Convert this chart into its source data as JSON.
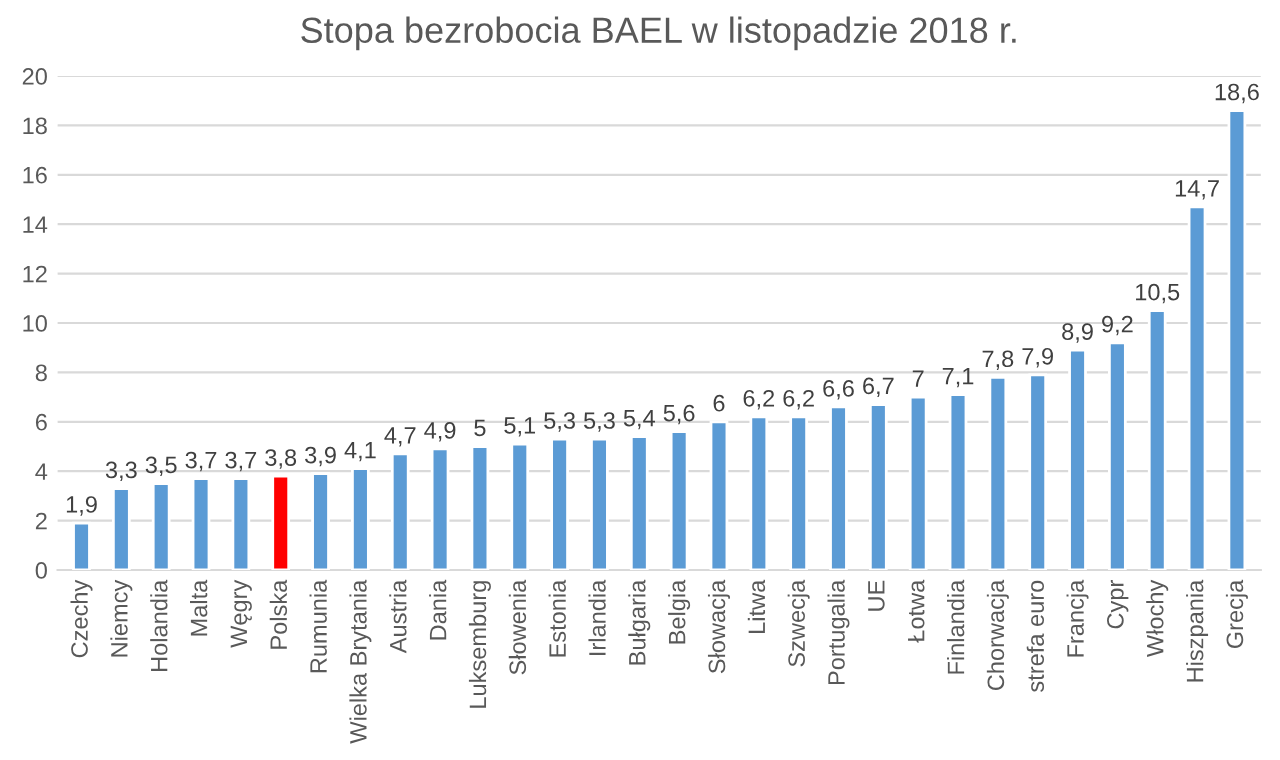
{
  "chart_data": {
    "type": "bar",
    "title": "Stopa bezrobocia BAEL w listopadzie 2018 r.",
    "categories": [
      "Czechy",
      "Niemcy",
      "Holandia",
      "Malta",
      "Węgry",
      "Polska",
      "Rumunia",
      "Wielka Brytania",
      "Austria",
      "Dania",
      "Luksemburg",
      "Słowenia",
      "Estonia",
      "Irlandia",
      "Bułgaria",
      "Belgia",
      "Słowacja",
      "Litwa",
      "Szwecja",
      "Portugalia",
      "UE",
      "Łotwa",
      "Finlandia",
      "Chorwacja",
      "strefa euro",
      "Francja",
      "Cypr",
      "Włochy",
      "Hiszpania",
      "Grecja"
    ],
    "values": [
      1.9,
      3.3,
      3.5,
      3.7,
      3.7,
      3.8,
      3.9,
      4.1,
      4.7,
      4.9,
      5,
      5.1,
      5.3,
      5.3,
      5.4,
      5.6,
      6,
      6.2,
      6.2,
      6.6,
      6.7,
      7,
      7.1,
      7.8,
      7.9,
      8.9,
      9.2,
      10.5,
      14.7,
      18.6
    ],
    "value_labels": [
      "1,9",
      "3,3",
      "3,5",
      "3,7",
      "3,7",
      "3,8",
      "3,9",
      "4,1",
      "4,7",
      "4,9",
      "5",
      "5,1",
      "5,3",
      "5,3",
      "5,4",
      "5,6",
      "6",
      "6,2",
      "6,2",
      "6,6",
      "6,7",
      "7",
      "7,1",
      "7,8",
      "7,9",
      "8,9",
      "9,2",
      "10,5",
      "14,7",
      "18,6"
    ],
    "colors": [
      "#5b9bd5",
      "#5b9bd5",
      "#5b9bd5",
      "#5b9bd5",
      "#5b9bd5",
      "#ff0000",
      "#5b9bd5",
      "#5b9bd5",
      "#5b9bd5",
      "#5b9bd5",
      "#5b9bd5",
      "#5b9bd5",
      "#5b9bd5",
      "#5b9bd5",
      "#5b9bd5",
      "#5b9bd5",
      "#5b9bd5",
      "#5b9bd5",
      "#5b9bd5",
      "#5b9bd5",
      "#5b9bd5",
      "#5b9bd5",
      "#5b9bd5",
      "#5b9bd5",
      "#5b9bd5",
      "#5b9bd5",
      "#5b9bd5",
      "#5b9bd5",
      "#5b9bd5",
      "#5b9bd5"
    ],
    "ylim": [
      0,
      20
    ],
    "yticks": [
      0,
      2,
      4,
      6,
      8,
      10,
      12,
      14,
      16,
      18,
      20
    ],
    "grid": "y",
    "legend": false
  }
}
